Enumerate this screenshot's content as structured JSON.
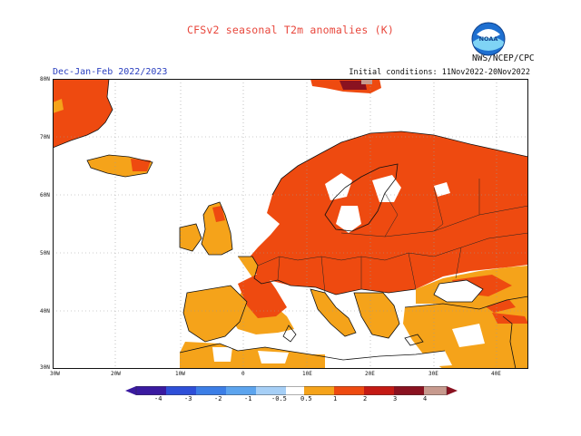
{
  "header": {
    "title": "CFSv2 seasonal T2m anomalies (K)",
    "period": "Dec-Jan-Feb 2022/2023",
    "initial_conditions": "Initial conditions: 11Nov2022-20Nov2022",
    "credit": "NWS/NCEP/CPC",
    "logo_text": "NOAA"
  },
  "axes": {
    "lat_labels": [
      "80N",
      "70N",
      "60N",
      "50N",
      "40N",
      "30N"
    ],
    "lon_labels": [
      "30W",
      "20W",
      "10W",
      "0",
      "10E",
      "20E",
      "30E",
      "40E"
    ]
  },
  "colorbar": {
    "labels": [
      "-4",
      "-3",
      "-2",
      "-1",
      "-0.5",
      "0.5",
      "1",
      "2",
      "3",
      "4"
    ],
    "colors": [
      "#3a1aa0",
      "#2e4fd8",
      "#3c7ee6",
      "#5ca4ee",
      "#a6cff6",
      "#ffffff",
      "#f5a31a",
      "#ee4a10",
      "#c41a14",
      "#8a1220",
      "#c79a8e"
    ]
  },
  "legend_colors": {
    "anomaly_0.5_1": "#f5a31a",
    "anomaly_1_2": "#ee4a10",
    "anomaly_2_3": "#c41a14",
    "anomaly_3_4": "#8a1220",
    "anomaly_gt_4": "#c79a8e"
  }
}
